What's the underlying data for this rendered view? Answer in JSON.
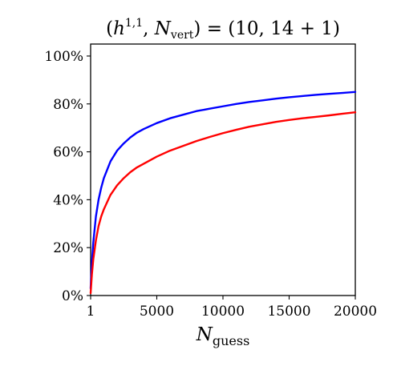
{
  "chart_data": {
    "type": "line",
    "title": "(h^{1,1}, N_vert) = (10, 14 + 1)",
    "title_parts": {
      "open": "(",
      "h": "h",
      "h_sup": "1,1",
      "sep": ", ",
      "N": "N",
      "N_sub": "vert",
      "rhs": ") = (10, 14 + 1)"
    },
    "xlabel": "N_guess",
    "xlabel_parts": {
      "N": "N",
      "sub": "guess"
    },
    "ylabel": "",
    "xlim": [
      1,
      20000
    ],
    "ylim": [
      0,
      105
    ],
    "x_ticks": [
      1,
      5000,
      10000,
      15000,
      20000
    ],
    "x_tick_labels": [
      "1",
      "5000",
      "10000",
      "15000",
      "20000"
    ],
    "y_ticks": [
      0,
      20,
      40,
      60,
      80,
      100
    ],
    "y_tick_labels": [
      "0%",
      "20%",
      "40%",
      "60%",
      "80%",
      "100%"
    ],
    "grid": false,
    "legend": "none",
    "series": [
      {
        "color": "#0000ff",
        "x": [
          1,
          100,
          200,
          400,
          600,
          800,
          1000,
          1500,
          2000,
          2500,
          3000,
          3500,
          4000,
          5000,
          6000,
          7000,
          8000,
          9000,
          10000,
          11000,
          12000,
          13000,
          14000,
          15000,
          16000,
          17000,
          18000,
          19000,
          20000
        ],
        "values": [
          3,
          14,
          22,
          33,
          40,
          45,
          49,
          56,
          60.5,
          63.5,
          66,
          68,
          69.5,
          72,
          74,
          75.5,
          77,
          78,
          79,
          80,
          80.8,
          81.5,
          82.2,
          82.8,
          83.3,
          83.8,
          84.2,
          84.6,
          85
        ]
      },
      {
        "color": "#ff0000",
        "x": [
          1,
          100,
          200,
          400,
          600,
          800,
          1000,
          1500,
          2000,
          2500,
          3000,
          3500,
          4000,
          5000,
          6000,
          7000,
          8000,
          9000,
          10000,
          11000,
          12000,
          13000,
          14000,
          15000,
          16000,
          17000,
          18000,
          19000,
          20000
        ],
        "values": [
          1,
          9,
          15,
          23,
          29,
          33,
          36,
          42,
          46,
          49,
          51.5,
          53.5,
          55,
          58,
          60.5,
          62.5,
          64.5,
          66.2,
          67.8,
          69.2,
          70.5,
          71.5,
          72.5,
          73.3,
          74,
          74.6,
          75.2,
          75.9,
          76.5
        ]
      }
    ]
  }
}
